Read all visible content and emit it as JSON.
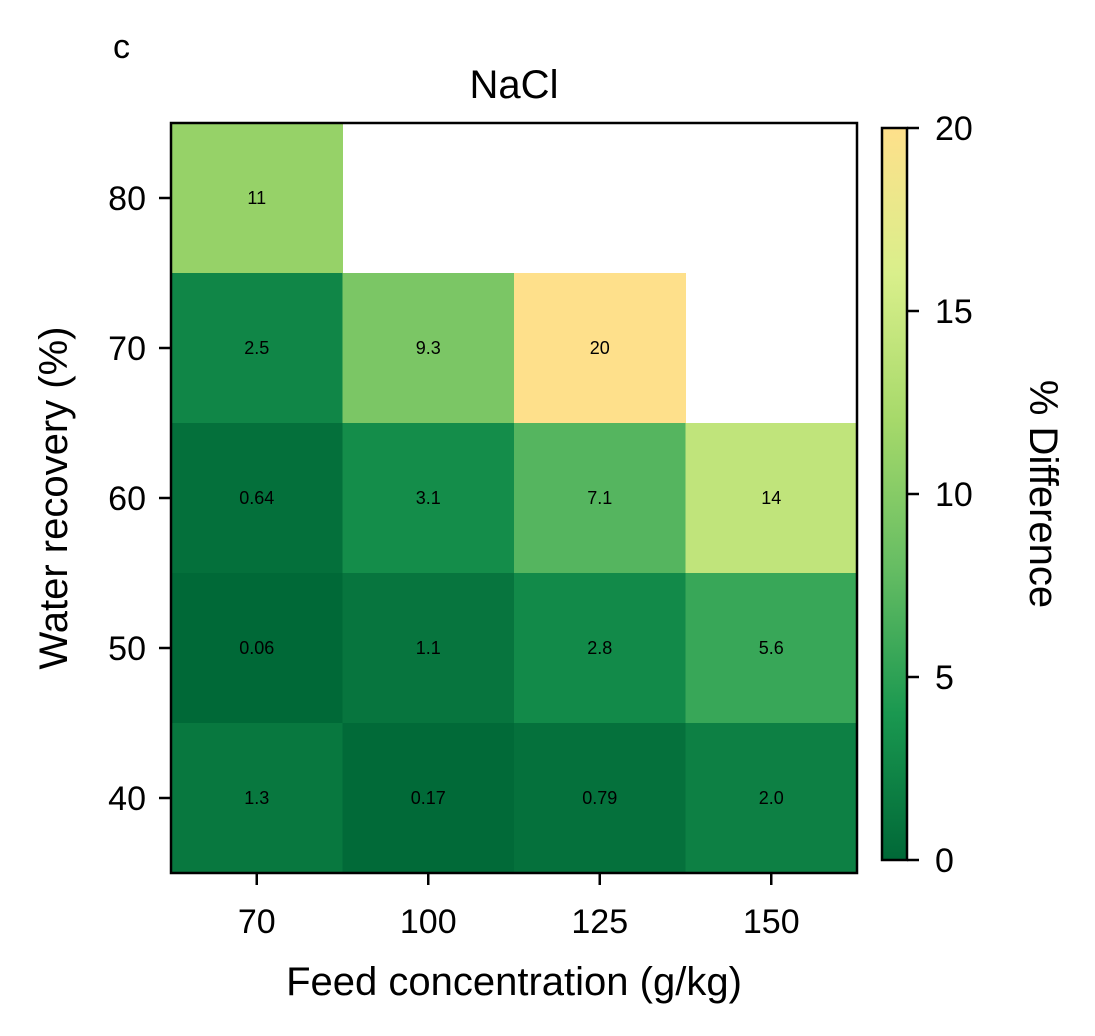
{
  "panel_label": "c",
  "chart_data": {
    "type": "heatmap",
    "title": "NaCl",
    "xlabel": "Feed concentration (g/kg)",
    "ylabel": "Water recovery (%)",
    "x_categories": [
      "70",
      "100",
      "125",
      "150"
    ],
    "y_categories": [
      "40",
      "50",
      "60",
      "70",
      "80"
    ],
    "cells": [
      {
        "x": "70",
        "y": "80",
        "value": 11,
        "label": "11"
      },
      {
        "x": "70",
        "y": "70",
        "value": 2.5,
        "label": "2.5"
      },
      {
        "x": "100",
        "y": "70",
        "value": 9.3,
        "label": "9.3"
      },
      {
        "x": "125",
        "y": "70",
        "value": 20,
        "label": "20"
      },
      {
        "x": "70",
        "y": "60",
        "value": 0.64,
        "label": "0.64"
      },
      {
        "x": "100",
        "y": "60",
        "value": 3.1,
        "label": "3.1"
      },
      {
        "x": "125",
        "y": "60",
        "value": 7.1,
        "label": "7.1"
      },
      {
        "x": "150",
        "y": "60",
        "value": 14,
        "label": "14"
      },
      {
        "x": "70",
        "y": "50",
        "value": 0.06,
        "label": "0.06"
      },
      {
        "x": "100",
        "y": "50",
        "value": 1.1,
        "label": "1.1"
      },
      {
        "x": "125",
        "y": "50",
        "value": 2.8,
        "label": "2.8"
      },
      {
        "x": "150",
        "y": "50",
        "value": 5.6,
        "label": "5.6"
      },
      {
        "x": "70",
        "y": "40",
        "value": 1.3,
        "label": "1.3"
      },
      {
        "x": "100",
        "y": "40",
        "value": 0.17,
        "label": "0.17"
      },
      {
        "x": "125",
        "y": "40",
        "value": 0.79,
        "label": "0.79"
      },
      {
        "x": "150",
        "y": "40",
        "value": 2.0,
        "label": "2.0"
      }
    ],
    "colorbar": {
      "label": "% Difference",
      "range": [
        0,
        20
      ],
      "ticks": [
        "0",
        "5",
        "10",
        "15",
        "20"
      ],
      "colormap": [
        "#006837",
        "#1a9850",
        "#66bd63",
        "#a6d96a",
        "#d9ef8b",
        "#fee08b"
      ]
    },
    "grid": false
  }
}
